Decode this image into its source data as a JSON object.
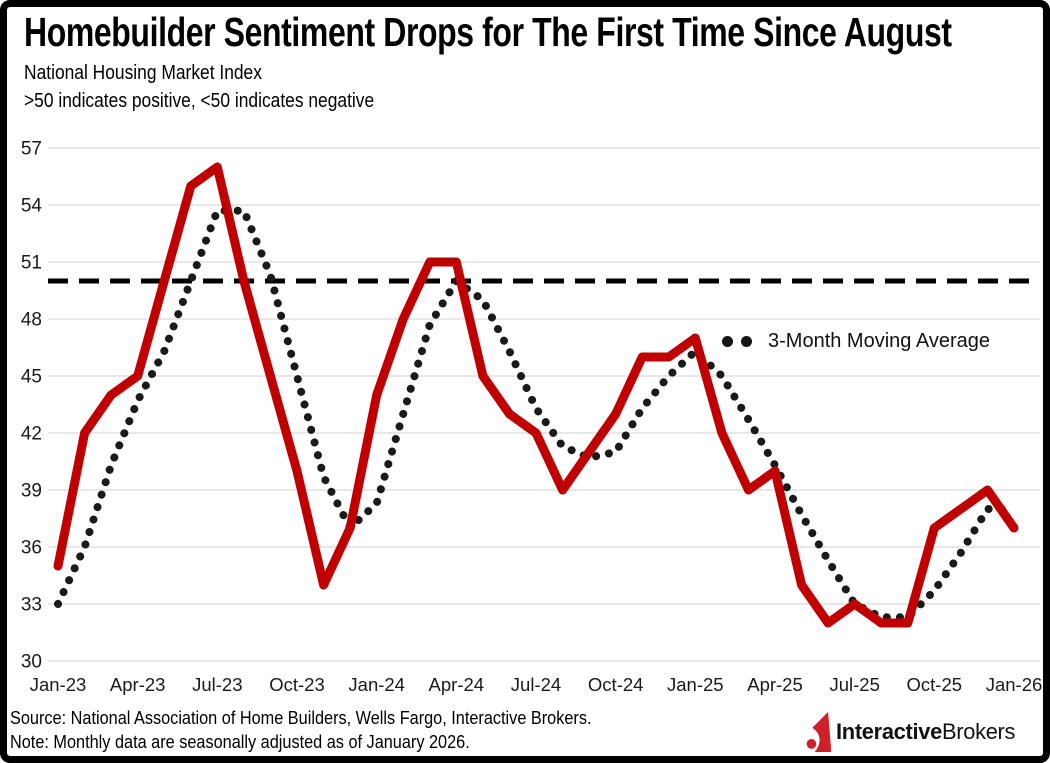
{
  "header": {
    "title": "Homebuilder Sentiment Drops for The First Time Since August",
    "subtitle1": "National Housing Market Index",
    "subtitle2": ">50 indicates positive, <50 indicates negative"
  },
  "legend": {
    "ma_label": "3-Month Moving Average"
  },
  "footer": {
    "source": "Source: National Association of Home Builders, Wells Fargo, Interactive Brokers.",
    "note": "Note: Monthly data are seasonally adjusted as of January 2026."
  },
  "logo": {
    "bold": "Interactive",
    "regular": "Brokers"
  },
  "colors": {
    "gridline": "#D9D9D9",
    "axis_text": "#1A1A1A",
    "logo_red": "#D02027"
  },
  "chart_data": {
    "type": "line",
    "title": "Homebuilder Sentiment Drops for The First Time Since August",
    "xlabel": "",
    "ylabel": "National Housing Market Index",
    "ylim": [
      30,
      57
    ],
    "yticks": [
      30,
      33,
      36,
      39,
      42,
      45,
      48,
      51,
      54,
      57
    ],
    "grid": true,
    "legend_position": "inside-right",
    "x": [
      "Jan-23",
      "Feb-23",
      "Mar-23",
      "Apr-23",
      "May-23",
      "Jun-23",
      "Jul-23",
      "Aug-23",
      "Sep-23",
      "Oct-23",
      "Nov-23",
      "Dec-23",
      "Jan-24",
      "Feb-24",
      "Mar-24",
      "Apr-24",
      "May-24",
      "Jun-24",
      "Jul-24",
      "Aug-24",
      "Sep-24",
      "Oct-24",
      "Nov-24",
      "Dec-24",
      "Jan-25",
      "Feb-25",
      "Mar-25",
      "Apr-25",
      "May-25",
      "Jun-25",
      "Jul-25",
      "Aug-25",
      "Sep-25",
      "Oct-25",
      "Nov-25",
      "Dec-25",
      "Jan-26"
    ],
    "x_tick_labels": [
      "Jan-23",
      "Apr-23",
      "Jul-23",
      "Oct-23",
      "Jan-24",
      "Apr-24",
      "Jul-24",
      "Oct-24",
      "Jan-25",
      "Apr-25",
      "Jul-25",
      "Oct-25",
      "Jan-26"
    ],
    "series": [
      {
        "name": "Housing Market Index",
        "style": "solid",
        "color": "#C00000",
        "values": [
          35,
          42,
          44,
          45,
          50,
          55,
          56,
          50,
          45,
          40,
          34,
          37,
          44,
          48,
          51,
          51,
          45,
          43,
          42,
          39,
          41,
          43,
          46,
          46,
          47,
          42,
          39,
          40,
          34,
          32,
          33,
          32,
          32,
          37,
          38,
          39,
          37
        ]
      },
      {
        "name": "3-Month Moving Average",
        "style": "dotted",
        "color": "#1A1A1A",
        "values": [
          33,
          36,
          40.3,
          43.7,
          46.3,
          50,
          53.7,
          53.7,
          50.3,
          45,
          39.7,
          37,
          38.3,
          43,
          47.7,
          50,
          49,
          46.3,
          43.3,
          41.3,
          40.7,
          41,
          43.3,
          45,
          46.3,
          45,
          42.7,
          40.3,
          37.7,
          35.3,
          33,
          32.3,
          32.3,
          33.7,
          35.7,
          38,
          38
        ]
      }
    ],
    "threshold": {
      "value": 50,
      "style": "dashed",
      "color": "#000000"
    }
  }
}
